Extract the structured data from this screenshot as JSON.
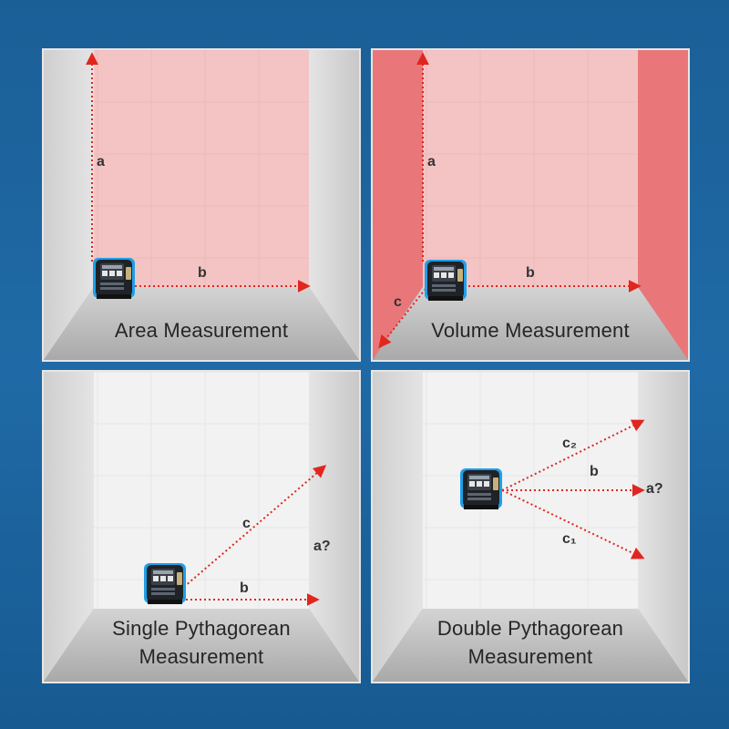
{
  "panels": [
    {
      "caption": [
        "Area Measurement"
      ],
      "labels": {
        "a": "a",
        "b": "b"
      }
    },
    {
      "caption": [
        "Volume Measurement"
      ],
      "labels": {
        "a": "a",
        "b": "b",
        "c": "c"
      }
    },
    {
      "caption": [
        "Single Pythagorean",
        "Measurement"
      ],
      "labels": {
        "c": "c",
        "b": "b",
        "a": "a?"
      }
    },
    {
      "caption": [
        "Double Pythagorean",
        "Measurement"
      ],
      "labels": {
        "c2": "c₂",
        "b": "b",
        "c1": "c₁",
        "a": "a?"
      }
    }
  ],
  "device": {
    "icon": "laser-tape-measure-icon",
    "accent": "#1e9fe8"
  },
  "colors": {
    "laser": "#e0261e",
    "pink_wall": "#f4c4c4",
    "red_side_wall": "#e9777a",
    "white_wall": "#f2f2f2",
    "floor": "#bdbdbd",
    "background": "#1c629d"
  }
}
